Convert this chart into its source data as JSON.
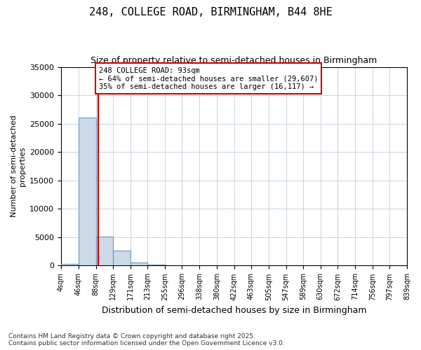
{
  "title": "248, COLLEGE ROAD, BIRMINGHAM, B44 8HE",
  "subtitle": "Size of property relative to semi-detached houses in Birmingham",
  "xlabel": "Distribution of semi-detached houses by size in Birmingham",
  "ylabel": "Number of semi-detached\nproperties",
  "property_size": 93,
  "property_label": "248 COLLEGE ROAD: 93sqm",
  "pct_smaller": 64,
  "pct_larger": 35,
  "n_smaller": 29607,
  "n_larger": 16117,
  "bin_edges": [
    4,
    46,
    88,
    129,
    171,
    213,
    255,
    296,
    338,
    380,
    422,
    463,
    505,
    547,
    589,
    630,
    672,
    714,
    756,
    797,
    839
  ],
  "bin_labels": [
    "4sqm",
    "46sqm",
    "88sqm",
    "129sqm",
    "171sqm",
    "213sqm",
    "255sqm",
    "296sqm",
    "338sqm",
    "380sqm",
    "422sqm",
    "463sqm",
    "505sqm",
    "547sqm",
    "589sqm",
    "630sqm",
    "672sqm",
    "714sqm",
    "756sqm",
    "797sqm",
    "839sqm"
  ],
  "counts": [
    350,
    26100,
    5100,
    2700,
    550,
    190,
    80,
    40,
    20,
    10,
    8,
    5,
    4,
    3,
    2,
    2,
    1,
    1,
    1,
    1
  ],
  "bar_color": "#ccd9e8",
  "bar_edge_color": "#6a9abf",
  "vline_color": "#cc0000",
  "annotation_box_color": "#cc0000",
  "background_color": "#ffffff",
  "grid_color": "#c8d4e0",
  "ylim": [
    0,
    35000
  ],
  "yticks": [
    0,
    5000,
    10000,
    15000,
    20000,
    25000,
    30000,
    35000
  ],
  "footer": "Contains HM Land Registry data © Crown copyright and database right 2025.\nContains public sector information licensed under the Open Government Licence v3.0."
}
